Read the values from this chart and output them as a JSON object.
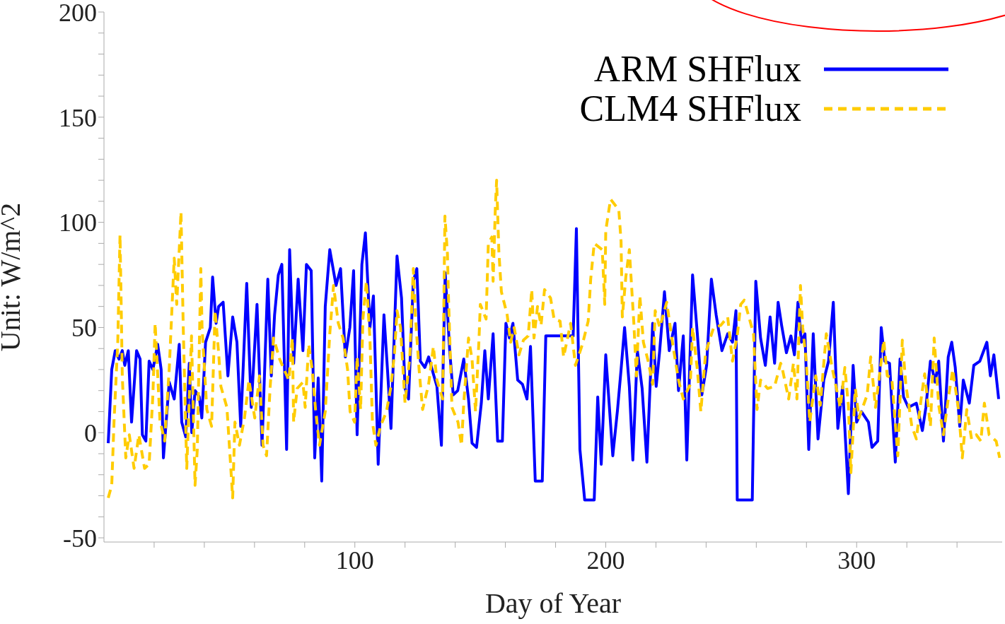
{
  "chart_data": {
    "type": "line",
    "xlabel": "Day of Year",
    "ylabel": "Unit: W/m^2",
    "xlim": [
      0,
      358
    ],
    "ylim": [
      -52,
      200
    ],
    "xticks": [
      {
        "value": 20,
        "label": null
      },
      {
        "value": 40,
        "label": null
      },
      {
        "value": 60,
        "label": null
      },
      {
        "value": 80,
        "label": null
      },
      100,
      {
        "value": 120,
        "label": null
      },
      {
        "value": 140,
        "label": null
      },
      {
        "value": 160,
        "label": null
      },
      {
        "value": 180,
        "label": null
      },
      200,
      {
        "value": 220,
        "label": null
      },
      {
        "value": 240,
        "label": null
      },
      {
        "value": 260,
        "label": null
      },
      {
        "value": 280,
        "label": null
      },
      300,
      {
        "value": 320,
        "label": null
      },
      {
        "value": 340,
        "label": null
      }
    ],
    "yticks": [
      -50,
      {
        "value": -40,
        "label": null
      },
      {
        "value": -30,
        "label": null
      },
      {
        "value": -20,
        "label": null
      },
      {
        "value": -10,
        "label": null
      },
      0,
      {
        "value": 10,
        "label": null
      },
      {
        "value": 20,
        "label": null
      },
      {
        "value": 30,
        "label": null
      },
      {
        "value": 40,
        "label": null
      },
      50,
      {
        "value": 60,
        "label": null
      },
      {
        "value": 70,
        "label": null
      },
      {
        "value": 80,
        "label": null
      },
      {
        "value": 90,
        "label": null
      },
      100,
      {
        "value": 110,
        "label": null
      },
      {
        "value": 120,
        "label": null
      },
      {
        "value": 130,
        "label": null
      },
      {
        "value": 140,
        "label": null
      },
      150,
      {
        "value": 160,
        "label": null
      },
      {
        "value": 170,
        "label": null
      },
      {
        "value": 180,
        "label": null
      },
      {
        "value": 190,
        "label": null
      },
      200
    ],
    "legend": "top right",
    "marker": "none",
    "series": [
      {
        "name": "ARM SHFlux",
        "color": "#0000ff",
        "line_style": "solid",
        "x": [
          1.7,
          3.1,
          4.5,
          6,
          7.3,
          8.3,
          9.7,
          11,
          13,
          14.4,
          15.3,
          16.7,
          18,
          19.5,
          21.4,
          22.8,
          23.7,
          26,
          28,
          30,
          31,
          32.6,
          34,
          35,
          36.3,
          38,
          39,
          40.5,
          42.4,
          43.3,
          44.7,
          45.7,
          47.5,
          49.4,
          51.3,
          53,
          54.5,
          56.9,
          58.7,
          61,
          63,
          65.3,
          66.7,
          68,
          69.5,
          70.9,
          72.8,
          74,
          75.6,
          77.4,
          79.3,
          80.7,
          82.6,
          84,
          85.4,
          86.8,
          88.2,
          90,
          92.5,
          94.3,
          96.2,
          98,
          99.5,
          100.9,
          102.8,
          104.2,
          106,
          107.4,
          109.3,
          111.6,
          113,
          114.4,
          116.8,
          118.6,
          120,
          121.4,
          123.3,
          124.7,
          126.1,
          127.9,
          129.4,
          130.8,
          132.7,
          134.5,
          136,
          137.8,
          139.2,
          141,
          143.4,
          145.3,
          146.7,
          148.5,
          150.4,
          151.8,
          153.2,
          155.1,
          156.9,
          158.8,
          160.2,
          161.6,
          163,
          164.9,
          166.8,
          168.6,
          170,
          171.9,
          174.7,
          176.1,
          180.3,
          187,
          188.3,
          189.7,
          191.6,
          195.4,
          196.8,
          198.2,
          200,
          201.4,
          202.8,
          204.7,
          206.1,
          207.5,
          209.4,
          210.8,
          212.6,
          214.5,
          216.4,
          218.7,
          220.1,
          221.5,
          223.4,
          225.3,
          227.6,
          229,
          230.9,
          232.3,
          234.6,
          236.5,
          238.3,
          240.2,
          242.1,
          244,
          246.3,
          248.6,
          250.5,
          251.9,
          252.4,
          258.4,
          259.8,
          261.7,
          263.6,
          265.5,
          267.3,
          268.7,
          270.1,
          272,
          273.8,
          275.2,
          276.6,
          278,
          279.4,
          280.9,
          282.7,
          284.6,
          286.9,
          288.8,
          290.7,
          292.5,
          294.4,
          296.7,
          298.6,
          300,
          301.9,
          304.7,
          306.1,
          308.4,
          309.8,
          311.2,
          313.1,
          315.4,
          317.3,
          318.7,
          320.6,
          323.8,
          326.2,
          327.6,
          329.4,
          331.3,
          332.7,
          334.6,
          336.5,
          337.9,
          339.3,
          341.1,
          342.5,
          344.9,
          346.7,
          349.1,
          351.9,
          353.3,
          354.7,
          356.6
        ],
        "values": [
          -5,
          30,
          39,
          35,
          39,
          32,
          39,
          5,
          39,
          35,
          -1,
          -4,
          34,
          30,
          42,
          30,
          -12,
          24,
          16,
          42,
          5,
          -2,
          33,
          0,
          20,
          17,
          7,
          43,
          50,
          74,
          52,
          60,
          62,
          27,
          55,
          43,
          3,
          71,
          12,
          61,
          -6,
          73,
          27,
          56,
          75,
          80,
          -8,
          87,
          33,
          73,
          39,
          80,
          77,
          -12,
          26,
          -23,
          60,
          87,
          70,
          78,
          36,
          50,
          77,
          -1,
          80,
          95,
          50,
          65,
          -15,
          56,
          30,
          2,
          84,
          64,
          21,
          16,
          72,
          78,
          34,
          31,
          36,
          30,
          22,
          -6,
          76,
          39,
          18,
          20,
          35,
          16,
          -5,
          -7,
          14,
          39,
          16,
          47,
          -4,
          -4,
          52,
          45,
          52,
          25,
          23,
          16,
          41,
          -23,
          -23,
          46,
          46,
          46,
          97,
          -8,
          -32,
          -32,
          17,
          -15,
          37,
          13,
          -11,
          11,
          30,
          50,
          22,
          -13,
          39,
          21,
          -14,
          52,
          22,
          39,
          67,
          39,
          52,
          20,
          46,
          -13,
          75,
          47,
          18,
          32,
          73,
          56,
          39,
          47,
          43,
          58,
          -32,
          -32,
          72,
          45,
          32,
          55,
          33,
          62,
          51,
          38,
          46,
          37,
          62,
          43,
          47,
          -8,
          47,
          -3,
          25,
          34,
          62,
          2,
          22,
          -29,
          32,
          5,
          10,
          5,
          -7,
          -4,
          50,
          34,
          33,
          -14,
          35,
          17,
          12,
          14,
          1,
          12,
          34,
          24,
          34,
          -4,
          36,
          43,
          31,
          3,
          25,
          14,
          32,
          34,
          43,
          27,
          37,
          16
        ]
      },
      {
        "name": "CLM4 SHFlux",
        "color": "#ffcc00",
        "line_style": "dashed",
        "x": [
          1.7,
          3.1,
          4,
          5.5,
          6.4,
          6.9,
          7.3,
          8.7,
          10.1,
          12,
          13.9,
          16.2,
          18,
          19.5,
          20.4,
          22.3,
          24.2,
          26,
          28,
          29,
          30.7,
          31.6,
          33,
          34.9,
          36.3,
          37.2,
          38.6,
          39.1,
          41,
          42.9,
          44.3,
          45.7,
          46.6,
          49,
          50.3,
          51.3,
          52.2,
          54,
          56,
          57.8,
          60.1,
          62,
          63.4,
          64.8,
          66.2,
          67.6,
          70,
          71.8,
          73.7,
          75.1,
          75.6,
          77,
          79.3,
          80.2,
          81.6,
          83,
          84.4,
          85.9,
          88.2,
          90,
          91.5,
          93.4,
          95.3,
          97.1,
          98.1,
          99.9,
          100.9,
          102.3,
          103.2,
          104.6,
          106,
          107,
          108.4,
          110.2,
          112.6,
          114.4,
          115.8,
          116.8,
          118.2,
          120,
          121.9,
          123.3,
          124.2,
          125.6,
          127,
          129.4,
          131.3,
          132.7,
          135,
          135.9,
          136.9,
          137.3,
          138.7,
          141.1,
          142.5,
          143.4,
          145.3,
          146.7,
          148.1,
          149.5,
          150,
          152.3,
          153.2,
          154.6,
          155.1,
          156,
          156.5,
          157.4,
          158.4,
          160.7,
          162.1,
          163.5,
          165.4,
          167.2,
          169.1,
          170.5,
          171.4,
          172.8,
          174.2,
          175.6,
          178,
          179.4,
          181.8,
          183.2,
          186,
          187.9,
          190.7,
          193,
          194,
          195.4,
          198.6,
          199.6,
          200,
          201.9,
          205.2,
          206.1,
          206.6,
          208,
          209.4,
          211.2,
          212.2,
          213.6,
          215,
          216.9,
          218.7,
          219.7,
          221.5,
          224.3,
          226.7,
          229,
          230.9,
          233.7,
          234.6,
          236.5,
          237.9,
          239.8,
          243,
          245.8,
          248.6,
          250.5,
          252.4,
          253.8,
          255.2,
          258.9,
          260.3,
          261.7,
          264.5,
          267.3,
          269.7,
          270.1,
          272.9,
          274.8,
          276.2,
          277.6,
          278.5,
          279.9,
          281.3,
          283.7,
          285.5,
          287.9,
          290.2,
          291.6,
          293.5,
          295.3,
          296.7,
          297.7,
          299.5,
          300.9,
          304.2,
          305.6,
          307.5,
          309.4,
          310.8,
          312.2,
          314,
          316.4,
          318.2,
          319.6,
          322,
          323.8,
          325.7,
          327.1,
          329.4,
          330.9,
          332.7,
          334.6,
          336.5,
          338.3,
          340.7,
          342.1,
          343.9,
          345.8,
          347.7,
          349.5,
          350.9,
          352.8,
          355.6,
          357
        ],
        "values": [
          -31,
          -25,
          5,
          43,
          94,
          58,
          27,
          -12,
          -1,
          -17,
          -1,
          -17,
          -15,
          18,
          52,
          6,
          -4,
          30,
          83,
          61,
          105,
          50,
          -17,
          46,
          -25,
          -8,
          78,
          50,
          11,
          3,
          58,
          38,
          22,
          12,
          -12,
          -31,
          5,
          -6,
          7,
          25,
          7,
          27,
          -6,
          -11,
          21,
          45,
          35,
          30,
          25,
          45,
          5,
          21,
          24,
          12,
          42,
          30,
          10,
          -6,
          10,
          47,
          70,
          52,
          45,
          30,
          10,
          5,
          36,
          11,
          54,
          72,
          45,
          5,
          -6,
          3,
          10,
          22,
          38,
          58,
          50,
          14,
          36,
          78,
          54,
          30,
          11,
          23,
          41,
          25,
          16,
          103,
          85,
          65,
          12,
          5,
          -6,
          14,
          45,
          35,
          10,
          45,
          61,
          54,
          90,
          93,
          72,
          107,
          120,
          86,
          67,
          56,
          43,
          50,
          37,
          44,
          46,
          68,
          45,
          60,
          51,
          68,
          64,
          54,
          53,
          36,
          52,
          32,
          42,
          53,
          73,
          90,
          87,
          61,
          96,
          111,
          106,
          91,
          55,
          74,
          87,
          52,
          27,
          65,
          43,
          34,
          23,
          58,
          50,
          62,
          42,
          25,
          16,
          23,
          50,
          30,
          10,
          38,
          50,
          51,
          55,
          34,
          46,
          61,
          63,
          47,
          11,
          25,
          21,
          22,
          33,
          32,
          16,
          33,
          16,
          70,
          50,
          34,
          5,
          27,
          13,
          47,
          31,
          23,
          12,
          31,
          13,
          -19,
          21,
          7,
          18,
          36,
          12,
          30,
          44,
          27,
          26,
          -11,
          44,
          23,
          3,
          -3,
          16,
          28,
          3,
          45,
          13,
          -1,
          16,
          30,
          10,
          -12,
          11,
          -3,
          -1,
          -4,
          14,
          -1,
          -4,
          -12
        ]
      }
    ]
  }
}
